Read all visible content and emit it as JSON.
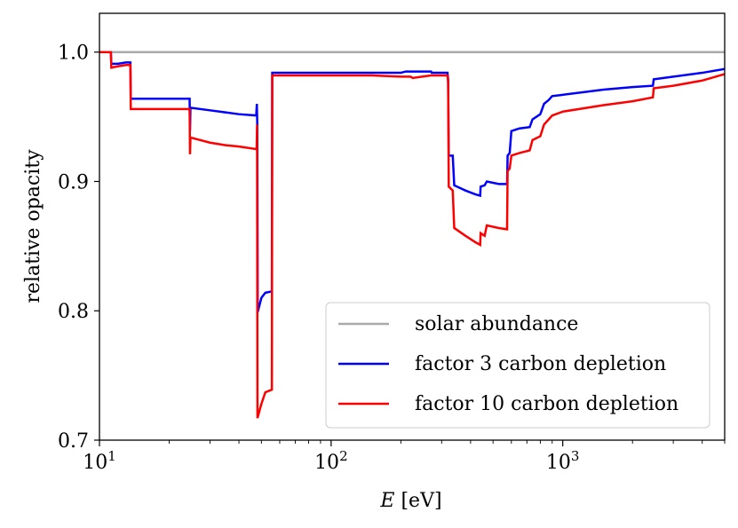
{
  "chart_data": {
    "type": "line",
    "title": "",
    "xlabel_var": "E",
    "xlabel_unit": " [eV]",
    "ylabel": "relative opacity",
    "xscale": "log",
    "xlim": [
      10,
      5000
    ],
    "ylim": [
      0.7,
      1.03
    ],
    "yticks": [
      0.7,
      0.8,
      0.9,
      1.0
    ],
    "ytick_labels": [
      "0.7",
      "0.8",
      "0.9",
      "1.0"
    ],
    "xticks_major": [
      10,
      100,
      1000
    ],
    "xtick_labels": [
      {
        "base": "10",
        "exp": "1"
      },
      {
        "base": "10",
        "exp": "2"
      },
      {
        "base": "10",
        "exp": "3"
      }
    ],
    "legend_position": "lower-right",
    "series": [
      {
        "name": "solar abundance",
        "color": "#aaaaaa",
        "points": [
          [
            10,
            1.0
          ],
          [
            5000,
            1.0
          ]
        ]
      },
      {
        "name": "factor 3 carbon depletion",
        "color": "#0000ff",
        "points": [
          [
            10,
            1.0
          ],
          [
            11.2,
            1.0
          ],
          [
            11.25,
            0.991
          ],
          [
            12,
            0.991
          ],
          [
            13,
            0.992
          ],
          [
            13.6,
            0.992
          ],
          [
            13.65,
            0.964
          ],
          [
            20,
            0.964
          ],
          [
            24.5,
            0.964
          ],
          [
            24.6,
            0.939
          ],
          [
            24.7,
            0.957
          ],
          [
            30,
            0.955
          ],
          [
            40,
            0.952
          ],
          [
            47.5,
            0.951
          ],
          [
            47.8,
            0.96
          ],
          [
            48,
            0.944
          ],
          [
            48.2,
            0.799
          ],
          [
            50,
            0.81
          ],
          [
            52,
            0.814
          ],
          [
            55.5,
            0.815
          ],
          [
            55.7,
            0.984
          ],
          [
            80,
            0.984
          ],
          [
            150,
            0.984
          ],
          [
            200,
            0.984
          ],
          [
            210,
            0.985
          ],
          [
            270,
            0.985
          ],
          [
            272,
            0.984
          ],
          [
            318,
            0.984
          ],
          [
            320,
            0.979
          ],
          [
            322,
            0.92
          ],
          [
            335,
            0.92
          ],
          [
            340,
            0.897
          ],
          [
            380,
            0.893
          ],
          [
            420,
            0.89
          ],
          [
            440,
            0.889
          ],
          [
            442,
            0.896
          ],
          [
            460,
            0.897
          ],
          [
            470,
            0.9
          ],
          [
            530,
            0.898
          ],
          [
            575,
            0.898
          ],
          [
            578,
            0.92
          ],
          [
            590,
            0.922
          ],
          [
            600,
            0.939
          ],
          [
            650,
            0.941
          ],
          [
            720,
            0.942
          ],
          [
            740,
            0.948
          ],
          [
            800,
            0.952
          ],
          [
            830,
            0.96
          ],
          [
            870,
            0.963
          ],
          [
            900,
            0.966
          ],
          [
            1000,
            0.967
          ],
          [
            1500,
            0.971
          ],
          [
            2000,
            0.973
          ],
          [
            2450,
            0.974
          ],
          [
            2470,
            0.979
          ],
          [
            3000,
            0.981
          ],
          [
            4000,
            0.984
          ],
          [
            5000,
            0.987
          ]
        ]
      },
      {
        "name": "factor 10 carbon depletion",
        "color": "#ff0000",
        "points": [
          [
            10,
            1.0
          ],
          [
            11.2,
            1.0
          ],
          [
            11.25,
            0.988
          ],
          [
            12,
            0.989
          ],
          [
            13,
            0.99
          ],
          [
            13.6,
            0.99
          ],
          [
            13.65,
            0.956
          ],
          [
            20,
            0.956
          ],
          [
            24.5,
            0.956
          ],
          [
            24.6,
            0.921
          ],
          [
            24.7,
            0.934
          ],
          [
            30,
            0.93
          ],
          [
            35,
            0.928
          ],
          [
            40,
            0.927
          ],
          [
            47.7,
            0.925
          ],
          [
            47.9,
            0.944
          ],
          [
            48.1,
            0.717
          ],
          [
            50,
            0.728
          ],
          [
            52,
            0.737
          ],
          [
            55.5,
            0.739
          ],
          [
            55.7,
            0.982
          ],
          [
            80,
            0.982
          ],
          [
            150,
            0.982
          ],
          [
            200,
            0.981
          ],
          [
            220,
            0.981
          ],
          [
            225,
            0.98
          ],
          [
            270,
            0.982
          ],
          [
            318,
            0.982
          ],
          [
            320,
            0.977
          ],
          [
            322,
            0.896
          ],
          [
            335,
            0.893
          ],
          [
            340,
            0.864
          ],
          [
            380,
            0.858
          ],
          [
            420,
            0.853
          ],
          [
            440,
            0.851
          ],
          [
            442,
            0.86
          ],
          [
            460,
            0.858
          ],
          [
            470,
            0.866
          ],
          [
            530,
            0.864
          ],
          [
            575,
            0.863
          ],
          [
            578,
            0.908
          ],
          [
            590,
            0.91
          ],
          [
            600,
            0.92
          ],
          [
            650,
            0.922
          ],
          [
            720,
            0.924
          ],
          [
            740,
            0.932
          ],
          [
            800,
            0.935
          ],
          [
            830,
            0.944
          ],
          [
            870,
            0.948
          ],
          [
            900,
            0.951
          ],
          [
            1000,
            0.954
          ],
          [
            1500,
            0.959
          ],
          [
            2000,
            0.962
          ],
          [
            2450,
            0.965
          ],
          [
            2470,
            0.972
          ],
          [
            3000,
            0.974
          ],
          [
            4000,
            0.978
          ],
          [
            5000,
            0.983
          ]
        ]
      }
    ]
  }
}
